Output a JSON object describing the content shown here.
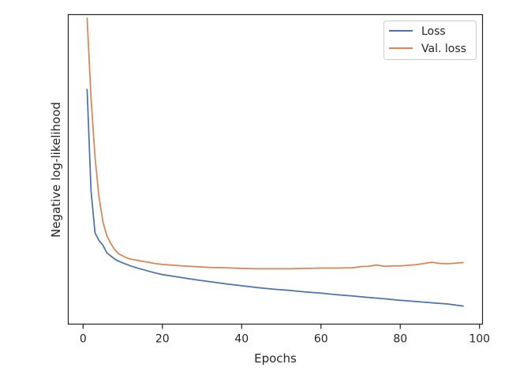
{
  "chart_data": {
    "type": "line",
    "title": "",
    "xlabel": "Epochs",
    "ylabel": "Negative log-likelihood",
    "xlim": [
      -3.75,
      100.75
    ],
    "ylim": [
      0,
      100
    ],
    "xticks": [
      0,
      20,
      40,
      60,
      80,
      100
    ],
    "xtick_labels": [
      "0",
      "20",
      "40",
      "60",
      "80",
      "100"
    ],
    "yticks_shown": false,
    "grid": false,
    "legend": "top-right",
    "series": [
      {
        "name": "Loss",
        "color": "#4c72b0",
        "x": [
          1,
          2,
          3,
          4,
          5,
          6,
          7,
          8,
          9,
          10,
          12,
          14,
          16,
          18,
          20,
          24,
          28,
          32,
          36,
          40,
          44,
          48,
          52,
          56,
          60,
          64,
          68,
          72,
          76,
          80,
          84,
          88,
          92,
          96
        ],
        "y": [
          76,
          43,
          29.5,
          27,
          25.5,
          23,
          22,
          21,
          20.3,
          19.8,
          18.8,
          18,
          17.3,
          16.6,
          16,
          15.2,
          14.4,
          13.7,
          13,
          12.4,
          11.8,
          11.3,
          10.9,
          10.4,
          10,
          9.5,
          9.1,
          8.6,
          8.2,
          7.7,
          7.3,
          6.9,
          6.5,
          5.8
        ]
      },
      {
        "name": "Val. loss",
        "color": "#dd8452",
        "x": [
          1,
          2,
          3,
          4,
          5,
          6,
          7,
          8,
          9,
          10,
          11,
          12,
          14,
          16,
          18,
          20,
          24,
          28,
          32,
          36,
          40,
          44,
          48,
          52,
          56,
          60,
          64,
          68,
          70,
          72,
          74,
          76,
          78,
          80,
          84,
          88,
          90,
          92,
          94,
          96
        ],
        "y": [
          99,
          73,
          54,
          41,
          33,
          28.5,
          26,
          24,
          22.7,
          22,
          21.4,
          21,
          20.5,
          20.1,
          19.6,
          19.3,
          18.9,
          18.6,
          18.3,
          18.2,
          18,
          17.9,
          17.9,
          17.9,
          18,
          18.1,
          18.1,
          18.2,
          18.6,
          18.7,
          19.1,
          18.7,
          18.8,
          18.8,
          19.2,
          20,
          19.6,
          19.5,
          19.7,
          19.9
        ]
      }
    ]
  }
}
